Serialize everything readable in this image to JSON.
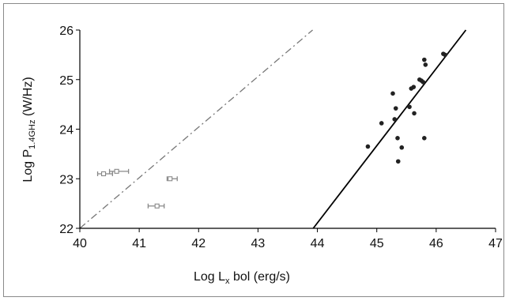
{
  "chart_data": {
    "type": "scatter",
    "title": "",
    "xlabel": {
      "prefix": "Log L",
      "sub": "x",
      "suffix": " bol (erg/s)"
    },
    "ylabel": {
      "prefix": "Log P",
      "sub": "1.4GHz",
      "suffix": " (W/Hz)"
    },
    "xlim": [
      40,
      47
    ],
    "ylim": [
      22,
      26
    ],
    "xticks": [
      "40",
      "41",
      "42",
      "43",
      "44",
      "45",
      "46",
      "47"
    ],
    "yticks": [
      "22",
      "23",
      "24",
      "25",
      "26"
    ],
    "grid": false,
    "legend": "none",
    "series": [
      {
        "marker": "filled-dot",
        "color": "#222222",
        "points": [
          [
            44.85,
            23.65
          ],
          [
            45.08,
            24.12
          ],
          [
            45.27,
            24.72
          ],
          [
            45.3,
            24.2
          ],
          [
            45.32,
            24.42
          ],
          [
            45.35,
            23.82
          ],
          [
            45.36,
            23.35
          ],
          [
            45.42,
            23.63
          ],
          [
            45.55,
            24.45
          ],
          [
            45.58,
            24.82
          ],
          [
            45.62,
            24.85
          ],
          [
            45.63,
            24.32
          ],
          [
            45.72,
            25.0
          ],
          [
            45.75,
            24.98
          ],
          [
            45.78,
            24.95
          ],
          [
            45.8,
            25.4
          ],
          [
            45.82,
            25.3
          ],
          [
            45.8,
            23.82
          ],
          [
            46.12,
            25.52
          ],
          [
            46.15,
            25.5
          ]
        ]
      },
      {
        "marker": "open-square-with-xerror",
        "color": "#888888",
        "points": [
          {
            "x": 40.4,
            "y": 23.1,
            "xerr": [
              0.1,
              0.15
            ]
          },
          {
            "x": 40.62,
            "y": 23.15,
            "xerr": [
              0.12,
              0.2
            ]
          },
          {
            "x": 41.52,
            "y": 23.0,
            "xerr": [
              0.05,
              0.12
            ]
          },
          {
            "x": 41.3,
            "y": 22.45,
            "xerr": [
              0.15,
              0.12
            ]
          }
        ]
      }
    ],
    "lines": [
      {
        "style": "solid",
        "color": "#000000",
        "points": [
          [
            43.93,
            22.0
          ],
          [
            46.5,
            26.0
          ]
        ]
      },
      {
        "style": "dashdot",
        "color": "#777777",
        "points": [
          [
            40.0,
            22.0
          ],
          [
            43.92,
            26.0
          ]
        ]
      }
    ]
  }
}
